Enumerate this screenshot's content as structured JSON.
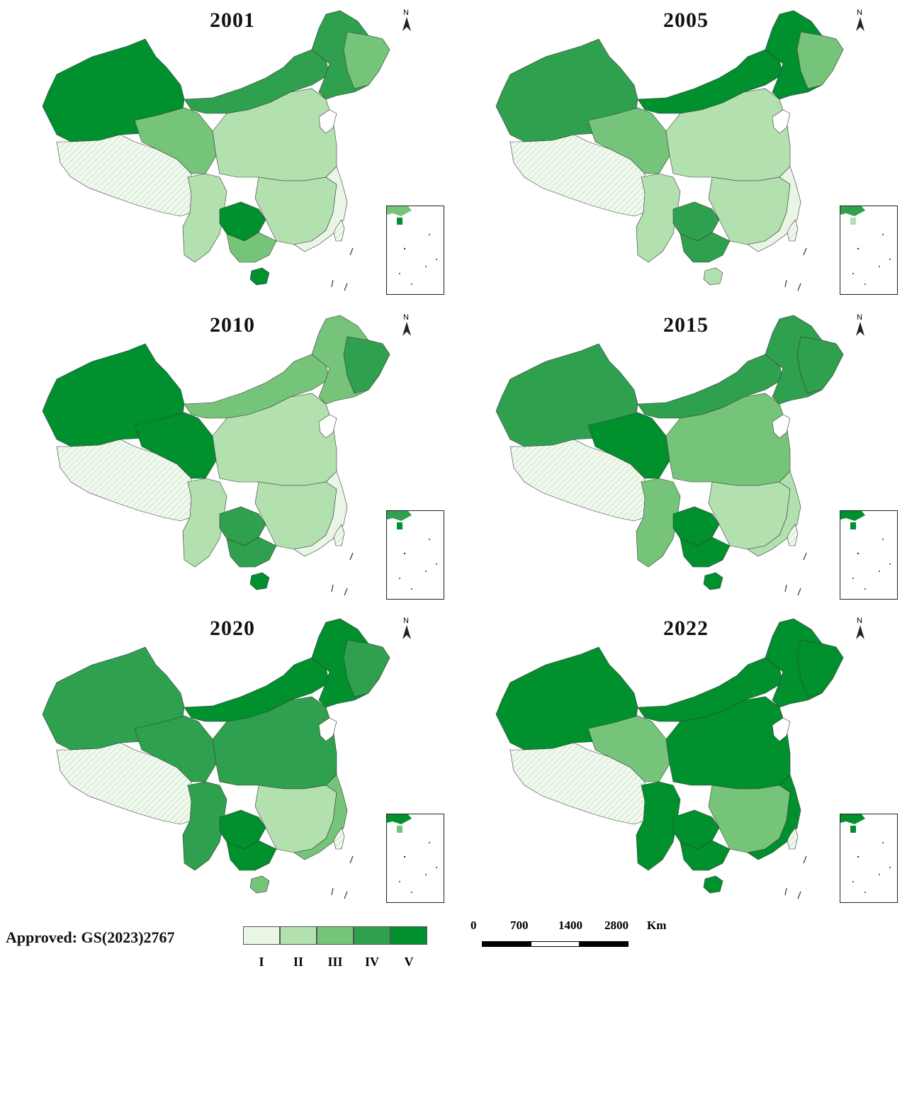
{
  "panels": [
    {
      "year": "2001",
      "colors": {
        "nw": "#00902e",
        "tibet": "hatch",
        "qinghai": "#76c479",
        "north": "#2fa04d",
        "ne": "#2fa04d",
        "ne2": "#76c479",
        "center": "#b2e0ae",
        "sw": "#b2e0ae",
        "south": "#b2e0ae",
        "guizhou": "#00902e",
        "guangxi": "#76c479",
        "east": "#e9f6e6",
        "hainan": "#00902e",
        "taiwan": "hatch"
      }
    },
    {
      "year": "2005",
      "colors": {
        "nw": "#2fa04d",
        "tibet": "hatch",
        "qinghai": "#76c479",
        "north": "#00902e",
        "ne": "#00902e",
        "ne2": "#76c479",
        "center": "#b2e0ae",
        "sw": "#b2e0ae",
        "south": "#b2e0ae",
        "guizhou": "#2fa04d",
        "guangxi": "#2fa04d",
        "east": "#e9f6e6",
        "hainan": "#b2e0ae",
        "taiwan": "hatch"
      }
    },
    {
      "year": "2010",
      "colors": {
        "nw": "#00902e",
        "tibet": "hatch",
        "qinghai": "#00902e",
        "north": "#76c479",
        "ne": "#76c479",
        "ne2": "#2fa04d",
        "center": "#b2e0ae",
        "sw": "#b2e0ae",
        "south": "#b2e0ae",
        "guizhou": "#2fa04d",
        "guangxi": "#2fa04d",
        "east": "#e9f6e6",
        "hainan": "#00902e",
        "taiwan": "hatch"
      }
    },
    {
      "year": "2015",
      "colors": {
        "nw": "#2fa04d",
        "tibet": "hatch",
        "qinghai": "#00902e",
        "north": "#2fa04d",
        "ne": "#2fa04d",
        "ne2": "#2fa04d",
        "center": "#76c479",
        "sw": "#76c479",
        "south": "#b2e0ae",
        "guizhou": "#00902e",
        "guangxi": "#00902e",
        "east": "#b2e0ae",
        "hainan": "#00902e",
        "taiwan": "hatch"
      }
    },
    {
      "year": "2020",
      "colors": {
        "nw": "#2fa04d",
        "tibet": "hatch",
        "qinghai": "#2fa04d",
        "north": "#00902e",
        "ne": "#00902e",
        "ne2": "#2fa04d",
        "center": "#2fa04d",
        "sw": "#2fa04d",
        "south": "#b2e0ae",
        "guizhou": "#00902e",
        "guangxi": "#00902e",
        "east": "#76c479",
        "hainan": "#76c479",
        "taiwan": "hatch"
      }
    },
    {
      "year": "2022",
      "colors": {
        "nw": "#00902e",
        "tibet": "hatch",
        "qinghai": "#76c479",
        "north": "#00902e",
        "ne": "#00902e",
        "ne2": "#00902e",
        "center": "#00902e",
        "sw": "#00902e",
        "south": "#76c479",
        "guizhou": "#00902e",
        "guangxi": "#00902e",
        "east": "#00902e",
        "hainan": "#00902e",
        "taiwan": "hatch"
      }
    }
  ],
  "north_label": "N",
  "approval": "Approved: GS(2023)2767",
  "legend": {
    "classes": [
      {
        "label": "I",
        "color": "#e9f6e6"
      },
      {
        "label": "II",
        "color": "#b2e0ae"
      },
      {
        "label": "III",
        "color": "#76c479"
      },
      {
        "label": "IV",
        "color": "#2fa04d"
      },
      {
        "label": "V",
        "color": "#00902e"
      }
    ]
  },
  "scale": {
    "ticks": [
      "0",
      "700",
      "1400",
      "2800"
    ],
    "unit": "Km"
  }
}
